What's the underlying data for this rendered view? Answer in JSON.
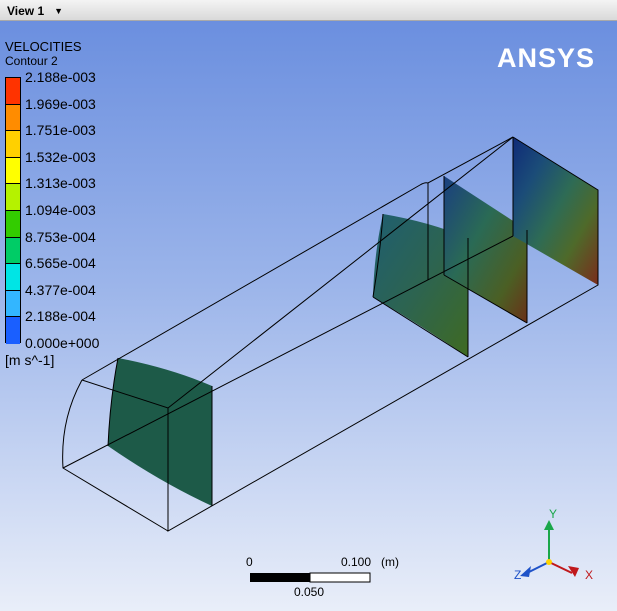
{
  "toolbar": {
    "view_tab": "View 1",
    "view_caret": "▼"
  },
  "logo": {
    "text": "ANSYS"
  },
  "legend": {
    "title": "VELOCITIES",
    "subtitle": "Contour 2",
    "units": "[m s^-1]",
    "ticks": [
      "2.188e-003",
      "1.969e-003",
      "1.751e-003",
      "1.532e-003",
      "1.313e-003",
      "1.094e-003",
      "8.753e-004",
      "6.565e-004",
      "4.377e-004",
      "2.188e-004",
      "0.000e+000"
    ],
    "colors": [
      "#ff3300",
      "#ff8c00",
      "#ffd000",
      "#ffff00",
      "#b5f200",
      "#33cc00",
      "#00cc66",
      "#00e5e5",
      "#33b6ff",
      "#1a5fff"
    ]
  },
  "scale": {
    "zero": "0",
    "max": "0.100",
    "unit": "(m)",
    "mid": "0.050"
  },
  "triad": {
    "y": "Y",
    "x": "X",
    "z": "Z"
  },
  "colors": {
    "face_green": "#1d5a48",
    "face_navy": "#0f2a78",
    "face_red": "#7a2c1c",
    "outline": "#000000"
  }
}
